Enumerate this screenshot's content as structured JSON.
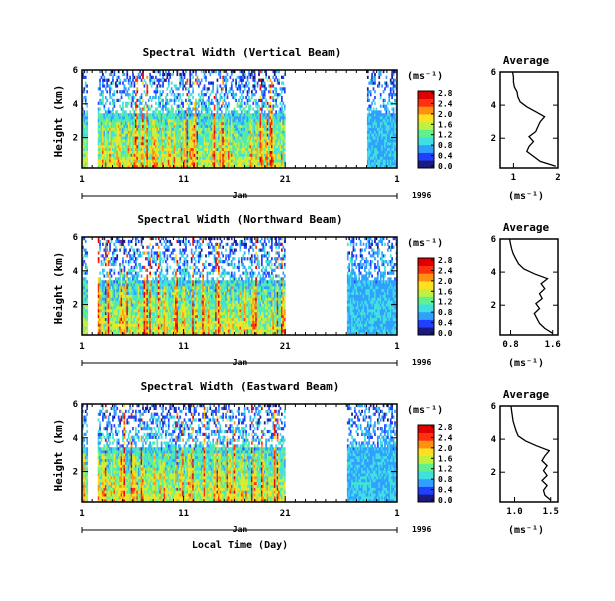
{
  "panels": [
    {
      "chart_data": {
        "type": "heatmap",
        "title": "Spectral Width (Vertical Beam)",
        "ylabel": "Height (km)",
        "y_ticks": [
          "2",
          "4",
          "6"
        ],
        "ylim": [
          0.2,
          6.0
        ],
        "x_ticks": [
          "1",
          "11",
          "21",
          "1"
        ],
        "x_range_label": "Jan",
        "year": "1996",
        "colorbar_unit": "(ms⁻¹)",
        "colorbar_ticks": [
          "0.0",
          "0.4",
          "0.8",
          "1.2",
          "1.6",
          "2.0",
          "2.4",
          "2.8"
        ],
        "gap_days": [
          21,
          29
        ],
        "active_days": [
          [
            1,
            1.6
          ],
          [
            2.6,
            21
          ],
          [
            29,
            32
          ]
        ]
      },
      "average": {
        "title": "Average",
        "xlabel": "(ms⁻¹)",
        "x_ticks": [
          "1",
          "2"
        ],
        "xlim": [
          0.7,
          2.0
        ],
        "y_ticks": [
          "2",
          "4",
          "6"
        ],
        "ylim": [
          0.2,
          6.0
        ],
        "heights": [
          0.3,
          0.6,
          0.9,
          1.2,
          1.5,
          1.8,
          2.1,
          2.4,
          2.7,
          3.0,
          3.3,
          3.6,
          3.9,
          4.2,
          4.5,
          4.8,
          5.1,
          5.4,
          5.7,
          6.0
        ],
        "values": [
          1.95,
          1.6,
          1.45,
          1.3,
          1.35,
          1.45,
          1.35,
          1.5,
          1.55,
          1.6,
          1.7,
          1.5,
          1.3,
          1.15,
          1.1,
          1.08,
          1.02,
          1.0,
          1.0,
          0.98
        ]
      }
    },
    {
      "chart_data": {
        "type": "heatmap",
        "title": "Spectral Width (Northward Beam)",
        "ylabel": "Height (km)",
        "y_ticks": [
          "2",
          "4",
          "6"
        ],
        "ylim": [
          0.2,
          6.0
        ],
        "x_ticks": [
          "1",
          "11",
          "21",
          "1"
        ],
        "x_range_label": "Jan",
        "year": "1996",
        "colorbar_unit": "(ms⁻¹)",
        "colorbar_ticks": [
          "0.0",
          "0.4",
          "0.8",
          "1.2",
          "1.6",
          "2.0",
          "2.4",
          "2.8"
        ],
        "gap_days": [
          21,
          27
        ],
        "active_days": [
          [
            1,
            1.5
          ],
          [
            2.6,
            21
          ],
          [
            27,
            32
          ]
        ]
      },
      "average": {
        "title": "Average",
        "xlabel": "(ms⁻¹)",
        "x_ticks": [
          "0.8",
          "1.6"
        ],
        "xlim": [
          0.6,
          1.7
        ],
        "y_ticks": [
          "2",
          "4",
          "6"
        ],
        "ylim": [
          0.2,
          6.0
        ],
        "heights": [
          0.3,
          0.6,
          0.9,
          1.2,
          1.5,
          1.8,
          2.1,
          2.4,
          2.7,
          3.0,
          3.3,
          3.6,
          3.9,
          4.2,
          4.5,
          4.8,
          5.1,
          5.4,
          5.7,
          6.0
        ],
        "values": [
          1.6,
          1.45,
          1.35,
          1.3,
          1.25,
          1.35,
          1.28,
          1.4,
          1.35,
          1.45,
          1.38,
          1.5,
          1.25,
          1.05,
          0.95,
          0.9,
          0.85,
          0.82,
          0.8,
          0.78
        ]
      }
    },
    {
      "chart_data": {
        "type": "heatmap",
        "title": "Spectral Width (Eastward Beam)",
        "ylabel": "Height (km)",
        "y_ticks": [
          "2",
          "4",
          "6"
        ],
        "ylim": [
          0.2,
          6.0
        ],
        "x_ticks": [
          "1",
          "11",
          "21",
          "1"
        ],
        "x_range_label": "Jan",
        "year": "1996",
        "colorbar_unit": "(ms⁻¹)",
        "colorbar_ticks": [
          "0.0",
          "0.4",
          "0.8",
          "1.2",
          "1.6",
          "2.0",
          "2.4",
          "2.8"
        ],
        "gap_days": [
          21,
          27
        ],
        "active_days": [
          [
            1,
            1.5
          ],
          [
            2.6,
            21
          ],
          [
            27,
            32
          ]
        ],
        "xlabel": "Local Time (Day)"
      },
      "average": {
        "title": "Average",
        "xlabel": "(ms⁻¹)",
        "x_ticks": [
          "1.0",
          "1.5"
        ],
        "xlim": [
          0.8,
          1.6
        ],
        "y_ticks": [
          "2",
          "4",
          "6"
        ],
        "ylim": [
          0.2,
          6.0
        ],
        "heights": [
          0.3,
          0.6,
          0.9,
          1.2,
          1.5,
          1.8,
          2.1,
          2.4,
          2.7,
          3.0,
          3.3,
          3.6,
          3.9,
          4.2,
          4.5,
          4.8,
          5.1,
          5.4,
          5.7,
          6.0
        ],
        "values": [
          1.5,
          1.42,
          1.4,
          1.45,
          1.38,
          1.45,
          1.4,
          1.45,
          1.38,
          1.42,
          1.48,
          1.3,
          1.15,
          1.05,
          1.02,
          1.0,
          0.98,
          0.97,
          0.96,
          0.95
        ]
      }
    }
  ],
  "colors": {
    "scale": [
      "#1a1a80",
      "#2040ff",
      "#30a0ff",
      "#40e0e0",
      "#60f090",
      "#c0f040",
      "#ffe020",
      "#ff9010",
      "#ff3010",
      "#e00000"
    ]
  }
}
